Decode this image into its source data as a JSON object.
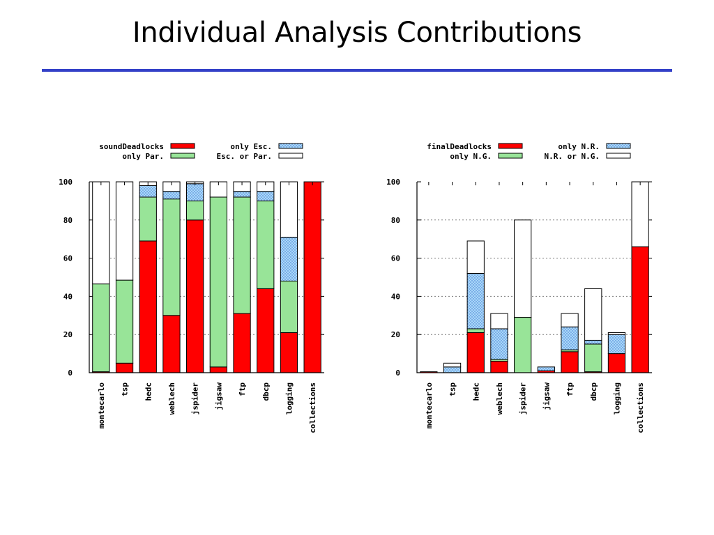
{
  "title": "Individual Analysis Contributions",
  "colors": {
    "red": "#ff0000",
    "green": "#98e498",
    "blue": "#a8d8f8",
    "white": "#ffffff",
    "rule": "#3341c8"
  },
  "chart_data": [
    {
      "type": "bar",
      "stacked": true,
      "ylim": [
        0,
        100
      ],
      "yticks": [
        0,
        20,
        40,
        60,
        80,
        100
      ],
      "grid": true,
      "legend_position": "top",
      "categories": [
        "montecarlo",
        "tsp",
        "hedc",
        "weblech",
        "jspider",
        "jigsaw",
        "ftp",
        "dbcp",
        "logging",
        "collections"
      ],
      "series": [
        {
          "name": "soundDeadlocks",
          "fill": "red",
          "values": [
            0.5,
            5,
            69,
            30,
            80,
            3,
            31,
            44,
            21,
            100
          ]
        },
        {
          "name": "only Par.",
          "fill": "green",
          "values": [
            46,
            43.5,
            23,
            61,
            10,
            89,
            61,
            46,
            27,
            0
          ]
        },
        {
          "name": "only Esc.",
          "fill": "blue",
          "values": [
            0,
            0,
            6,
            4,
            9,
            0,
            3,
            5,
            23,
            0
          ]
        },
        {
          "name": "Esc. or Par.",
          "fill": "white",
          "values": [
            53.5,
            51.5,
            2,
            5,
            1,
            8,
            5,
            5,
            29,
            0
          ]
        }
      ]
    },
    {
      "type": "bar",
      "stacked": true,
      "ylim": [
        0,
        100
      ],
      "yticks": [
        0,
        20,
        40,
        60,
        80,
        100
      ],
      "grid": true,
      "legend_position": "top",
      "categories": [
        "montecarlo",
        "tsp",
        "hedc",
        "weblech",
        "jspider",
        "jigsaw",
        "ftp",
        "dbcp",
        "logging",
        "collections"
      ],
      "series": [
        {
          "name": "finalDeadlocks",
          "fill": "red",
          "values": [
            0.5,
            0,
            21,
            6,
            0,
            1,
            11,
            0.5,
            10,
            66
          ]
        },
        {
          "name": "only N.G.",
          "fill": "green",
          "values": [
            0,
            0,
            2,
            1,
            29,
            0,
            1,
            14.5,
            0,
            0
          ]
        },
        {
          "name": "only N.R.",
          "fill": "blue",
          "values": [
            0,
            3,
            29,
            16,
            0,
            2,
            12,
            2,
            10,
            0
          ]
        },
        {
          "name": "N.R. or N.G.",
          "fill": "white",
          "values": [
            0,
            2,
            17,
            8,
            51,
            0,
            7,
            27,
            1,
            34
          ]
        }
      ]
    }
  ]
}
